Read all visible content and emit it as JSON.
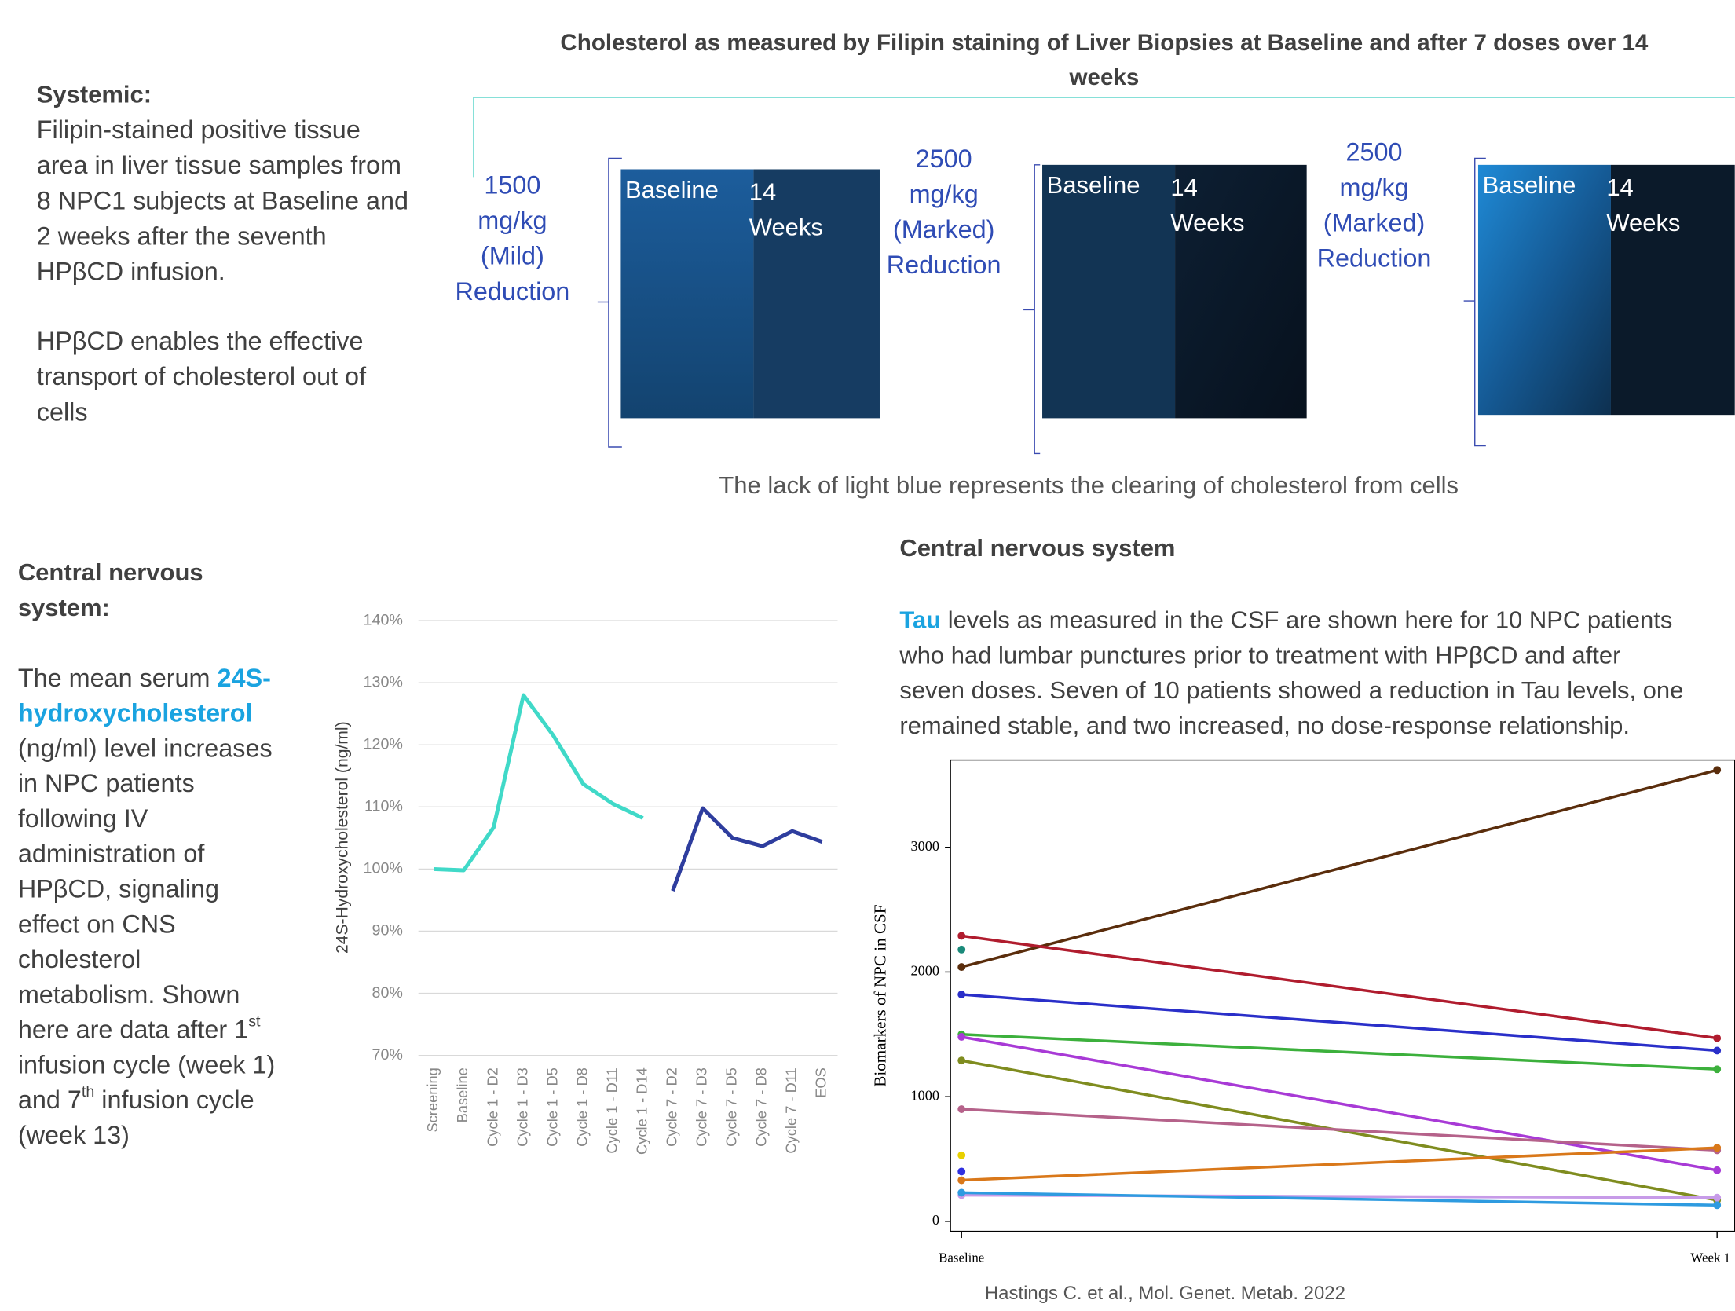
{
  "systemic": {
    "heading": "Systemic:",
    "lines": [
      "Filipin-stained positive tissue",
      "area in liver tissue samples from",
      "8 NPC1 subjects at Baseline and",
      "2 weeks after the seventh",
      "HPβCD infusion.",
      "HPβCD enables the effective",
      "transport of cholesterol out of",
      "cells"
    ]
  },
  "biopsy": {
    "title_lines": [
      "Cholesterol as measured by Filipin staining of Liver Biopsies at Baseline and after 7 doses over 14",
      "weeks"
    ],
    "panels": [
      {
        "dose_lines": [
          "1500",
          "mg/kg",
          "(Mild)",
          "Reduction"
        ],
        "before": "Baseline",
        "after_lines": [
          "14",
          "Weeks"
        ]
      },
      {
        "dose_lines": [
          "2500",
          "mg/kg",
          "(Marked)",
          "Reduction"
        ],
        "before": "Baseline",
        "after_lines": [
          "14",
          "Weeks"
        ]
      },
      {
        "dose_lines": [
          "2500",
          "mg/kg",
          "(Marked)",
          "Reduction"
        ],
        "before": "Baseline",
        "after_lines": [
          "14",
          "Weeks"
        ]
      }
    ],
    "caption": "The lack of light blue represents the clearing of cholesterol from cells"
  },
  "cns_left": {
    "heading_lines": [
      "Central nervous",
      "system:"
    ],
    "lines": [
      [
        {
          "text": "The mean serum "
        },
        {
          "text": "24S-",
          "highlight": true
        }
      ],
      [
        {
          "text": "hydroxycholesterol",
          "highlight": true
        }
      ],
      [
        {
          "text": "(ng/ml) level increases"
        }
      ],
      [
        {
          "text": "in NPC patients"
        }
      ],
      [
        {
          "text": "following IV"
        }
      ],
      [
        {
          "text": "administration of"
        }
      ],
      [
        {
          "text": "HPβCD, signaling"
        }
      ],
      [
        {
          "text": "effect on CNS"
        }
      ],
      [
        {
          "text": "cholesterol"
        }
      ],
      [
        {
          "text": "metabolism. Shown"
        }
      ],
      [
        {
          "text": "here are data after 1"
        },
        {
          "text": "st",
          "sup": true
        }
      ],
      [
        {
          "text": "infusion cycle (week 1)"
        }
      ],
      [
        {
          "text": "and 7"
        },
        {
          "text": "th",
          "sup": true
        },
        {
          "text": " infusion cycle"
        }
      ],
      [
        {
          "text": "(week 13)"
        }
      ]
    ]
  },
  "cns_right": {
    "heading": "Central nervous system",
    "lines": [
      [
        {
          "text": "Tau",
          "highlight": true
        },
        {
          "text": " levels as measured in the CSF are shown here for 10 NPC patients"
        }
      ],
      [
        {
          "text": "who had lumbar punctures prior to treatment with HPβCD and after"
        }
      ],
      [
        {
          "text": "seven doses.  Seven of 10 patients showed a reduction in Tau levels, one"
        }
      ],
      [
        {
          "text": "remained stable, and two increased, no dose-response relationship."
        }
      ]
    ]
  },
  "citation": "Hastings C. et al., Mol. Genet. Metab. 2022",
  "chart_data": [
    {
      "type": "line",
      "y_label": "24S-Hydroxycholesterol (ng/ml)",
      "categories": [
        "Screening",
        "Baseline",
        "Cycle 1 - D2",
        "Cycle 1 - D3",
        "Cycle 1 - D5",
        "Cycle 1 - D8",
        "Cycle 1 - D11",
        "Cycle 1 - D14",
        "Cycle 7 - D2",
        "Cycle 7 - D3",
        "Cycle 7 - D5",
        "Cycle 7 - D8",
        "Cycle 7 - D11",
        "EOS"
      ],
      "series": [
        {
          "color": "#40d9c8",
          "values": [
            100,
            99.8,
            106.7,
            128,
            121.5,
            113.7,
            110.5,
            108.2,
            null,
            null,
            null,
            null,
            null,
            null
          ]
        },
        {
          "color": "#2e3d9e",
          "values": [
            null,
            null,
            null,
            null,
            null,
            null,
            null,
            null,
            96.5,
            109.8,
            105,
            103.7,
            106.1,
            104.4
          ]
        }
      ],
      "ylim": [
        70,
        140
      ],
      "yticks": [
        {
          "value": 70,
          "label": "70%"
        },
        {
          "value": 80,
          "label": "80%"
        },
        {
          "value": 90,
          "label": "90%"
        },
        {
          "value": 100,
          "label": "100%"
        },
        {
          "value": 110,
          "label": "110%"
        },
        {
          "value": 120,
          "label": "120%"
        },
        {
          "value": 130,
          "label": "130%"
        },
        {
          "value": 140,
          "label": "140%"
        }
      ],
      "grid": true
    },
    {
      "type": "line",
      "y_label": "Biomarkers of NPC in CSF",
      "categories": [
        "Baseline",
        "Week 1"
      ],
      "series": [
        {
          "color": "#5a2d0c",
          "values": [
            2040,
            3620
          ]
        },
        {
          "color": "#b01c2e",
          "values": [
            2290,
            1470
          ]
        },
        {
          "color": "#2a2fc9",
          "values": [
            1820,
            1370
          ]
        },
        {
          "color": "#3cb03c",
          "values": [
            1500,
            1220
          ]
        },
        {
          "color": "#a83ad6",
          "values": [
            1480,
            410
          ]
        },
        {
          "color": "#7f8c1f",
          "values": [
            1290,
            170
          ]
        },
        {
          "color": "#b5628a",
          "values": [
            900,
            570
          ]
        },
        {
          "color": "#d9781a",
          "values": [
            330,
            590
          ]
        },
        {
          "color": "#c79be8",
          "values": [
            210,
            190
          ]
        },
        {
          "color": "#2e9be0",
          "values": [
            230,
            130
          ]
        },
        {
          "color": "#1a8a7a",
          "values": [
            2180,
            null
          ]
        },
        {
          "color": "#e8d000",
          "values": [
            530,
            null
          ]
        },
        {
          "color": "#3030e0",
          "values": [
            400,
            null
          ]
        }
      ],
      "ylim": [
        -80,
        3700
      ],
      "yticks": [
        0,
        1000,
        2000,
        3000
      ],
      "grid": false
    }
  ]
}
